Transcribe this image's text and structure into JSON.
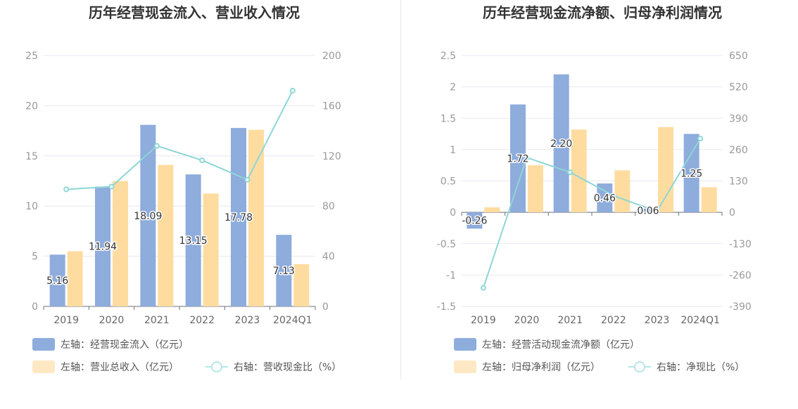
{
  "chart_data": [
    {
      "type": "bar",
      "title": "历年经营现金流入、营业收入情况",
      "categories": [
        "2019",
        "2020",
        "2021",
        "2022",
        "2023",
        "2024Q1"
      ],
      "ylim_left": [
        0,
        25
      ],
      "left_ticks": [
        "0",
        "5",
        "10",
        "15",
        "20",
        "25"
      ],
      "ylim_right": [
        0,
        200
      ],
      "right_ticks": [
        "0",
        "40",
        "80",
        "120",
        "160",
        "200"
      ],
      "series": [
        {
          "name": "左轴：经营现金流入（亿元）",
          "axis": "left",
          "type": "bar",
          "color": "#8eacdc",
          "values": [
            5.16,
            11.94,
            18.09,
            13.15,
            17.78,
            7.13
          ],
          "labels": [
            "5.16",
            "11.94",
            "18.09",
            "13.15",
            "17.78",
            "7.13"
          ]
        },
        {
          "name": "左轴：营业总收入（亿元）",
          "axis": "left",
          "type": "bar",
          "color": "#fedca0",
          "values": [
            5.5,
            12.5,
            14.1,
            11.25,
            17.6,
            4.2
          ]
        },
        {
          "name": "右轴：营收现金比（%）",
          "axis": "right",
          "type": "line",
          "color": "#8dd6d6",
          "values": [
            93.3,
            95.5,
            128,
            116.5,
            101,
            172
          ]
        }
      ],
      "legend": "bottom"
    },
    {
      "type": "bar",
      "title": "历年经营现金流净额、归母净利润情况",
      "categories": [
        "2019",
        "2020",
        "2021",
        "2022",
        "2023",
        "2024Q1"
      ],
      "ylim_left": [
        -1.5,
        2.5
      ],
      "left_ticks": [
        "-1.5",
        "-1",
        "-0.5",
        "0",
        "0.5",
        "1",
        "1.5",
        "2",
        "2.5"
      ],
      "ylim_right": [
        -390,
        650
      ],
      "right_ticks": [
        "-390",
        "-260",
        "-130",
        "0",
        "130",
        "260",
        "390",
        "520",
        "650"
      ],
      "series": [
        {
          "name": "左轴：经营活动现金流净额（亿元）",
          "axis": "left",
          "type": "bar",
          "color": "#8eacdc",
          "values": [
            -0.26,
            1.72,
            2.2,
            0.46,
            0.06,
            1.25
          ],
          "labels": [
            "-0.26",
            "1.72",
            "2.20",
            "0.46",
            "0.06",
            "1.25"
          ]
        },
        {
          "name": "左轴：归母净利润（亿元）",
          "axis": "left",
          "type": "bar",
          "color": "#fedca0",
          "values": [
            0.08,
            0.75,
            1.32,
            0.67,
            1.36,
            0.4
          ]
        },
        {
          "name": "右轴：净现比（%）",
          "axis": "right",
          "type": "line",
          "color": "#8dd6d6",
          "values": [
            -313,
            227,
            166,
            69,
            4,
            306
          ]
        }
      ],
      "legend": "bottom"
    }
  ]
}
